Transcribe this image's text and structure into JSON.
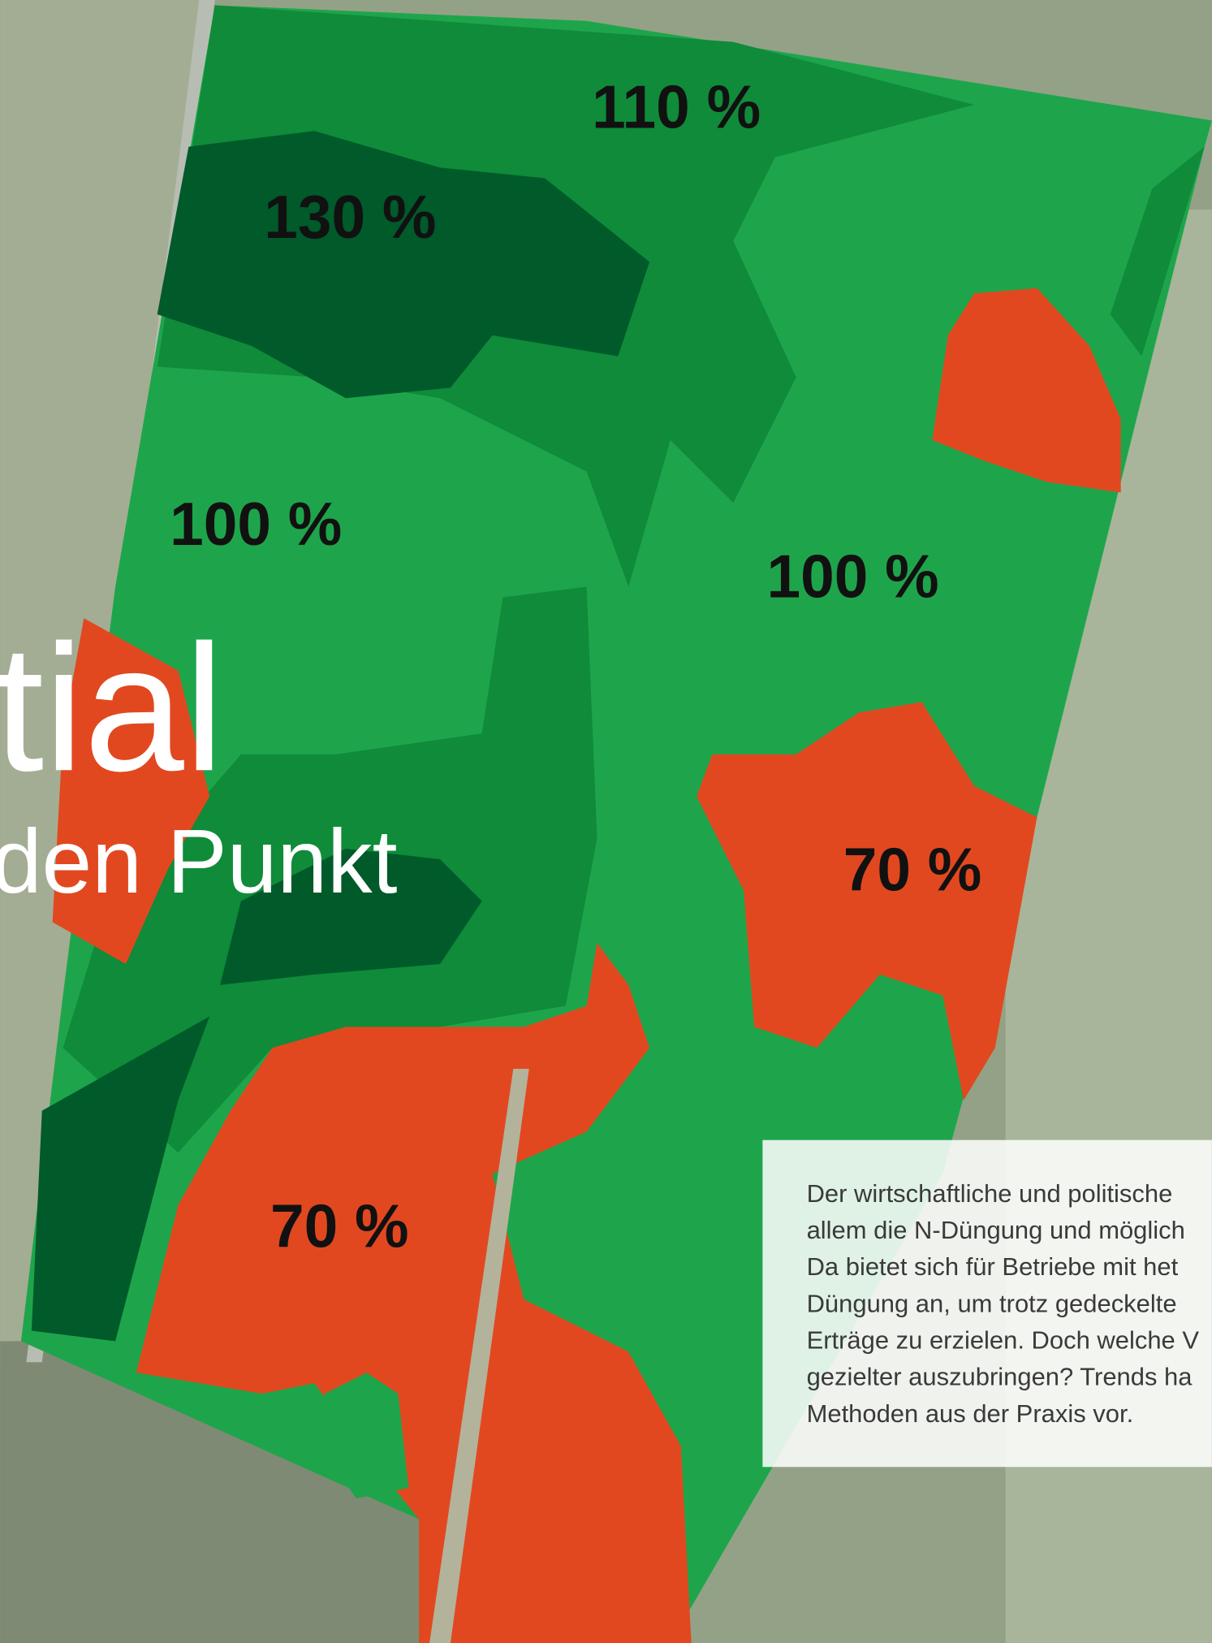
{
  "heading": {
    "line1": "tial",
    "line2": "den Punkt"
  },
  "map": {
    "zones": [
      {
        "label": "110 %"
      },
      {
        "label": "130 %"
      },
      {
        "label": "100 %"
      },
      {
        "label": "100 %"
      },
      {
        "label": "70 %"
      },
      {
        "label": "70 %"
      }
    ]
  },
  "intro": {
    "lines": [
      "Der wirtschaftliche und politische",
      "allem die N-Düngung und möglich",
      "Da bietet sich für Betriebe mit het",
      "Düngung an, um trotz gedeckelte",
      "Erträge zu erzielen. Doch welche V",
      "gezielter auszubringen? Trends ha",
      "Methoden aus der Praxis vor."
    ]
  }
}
